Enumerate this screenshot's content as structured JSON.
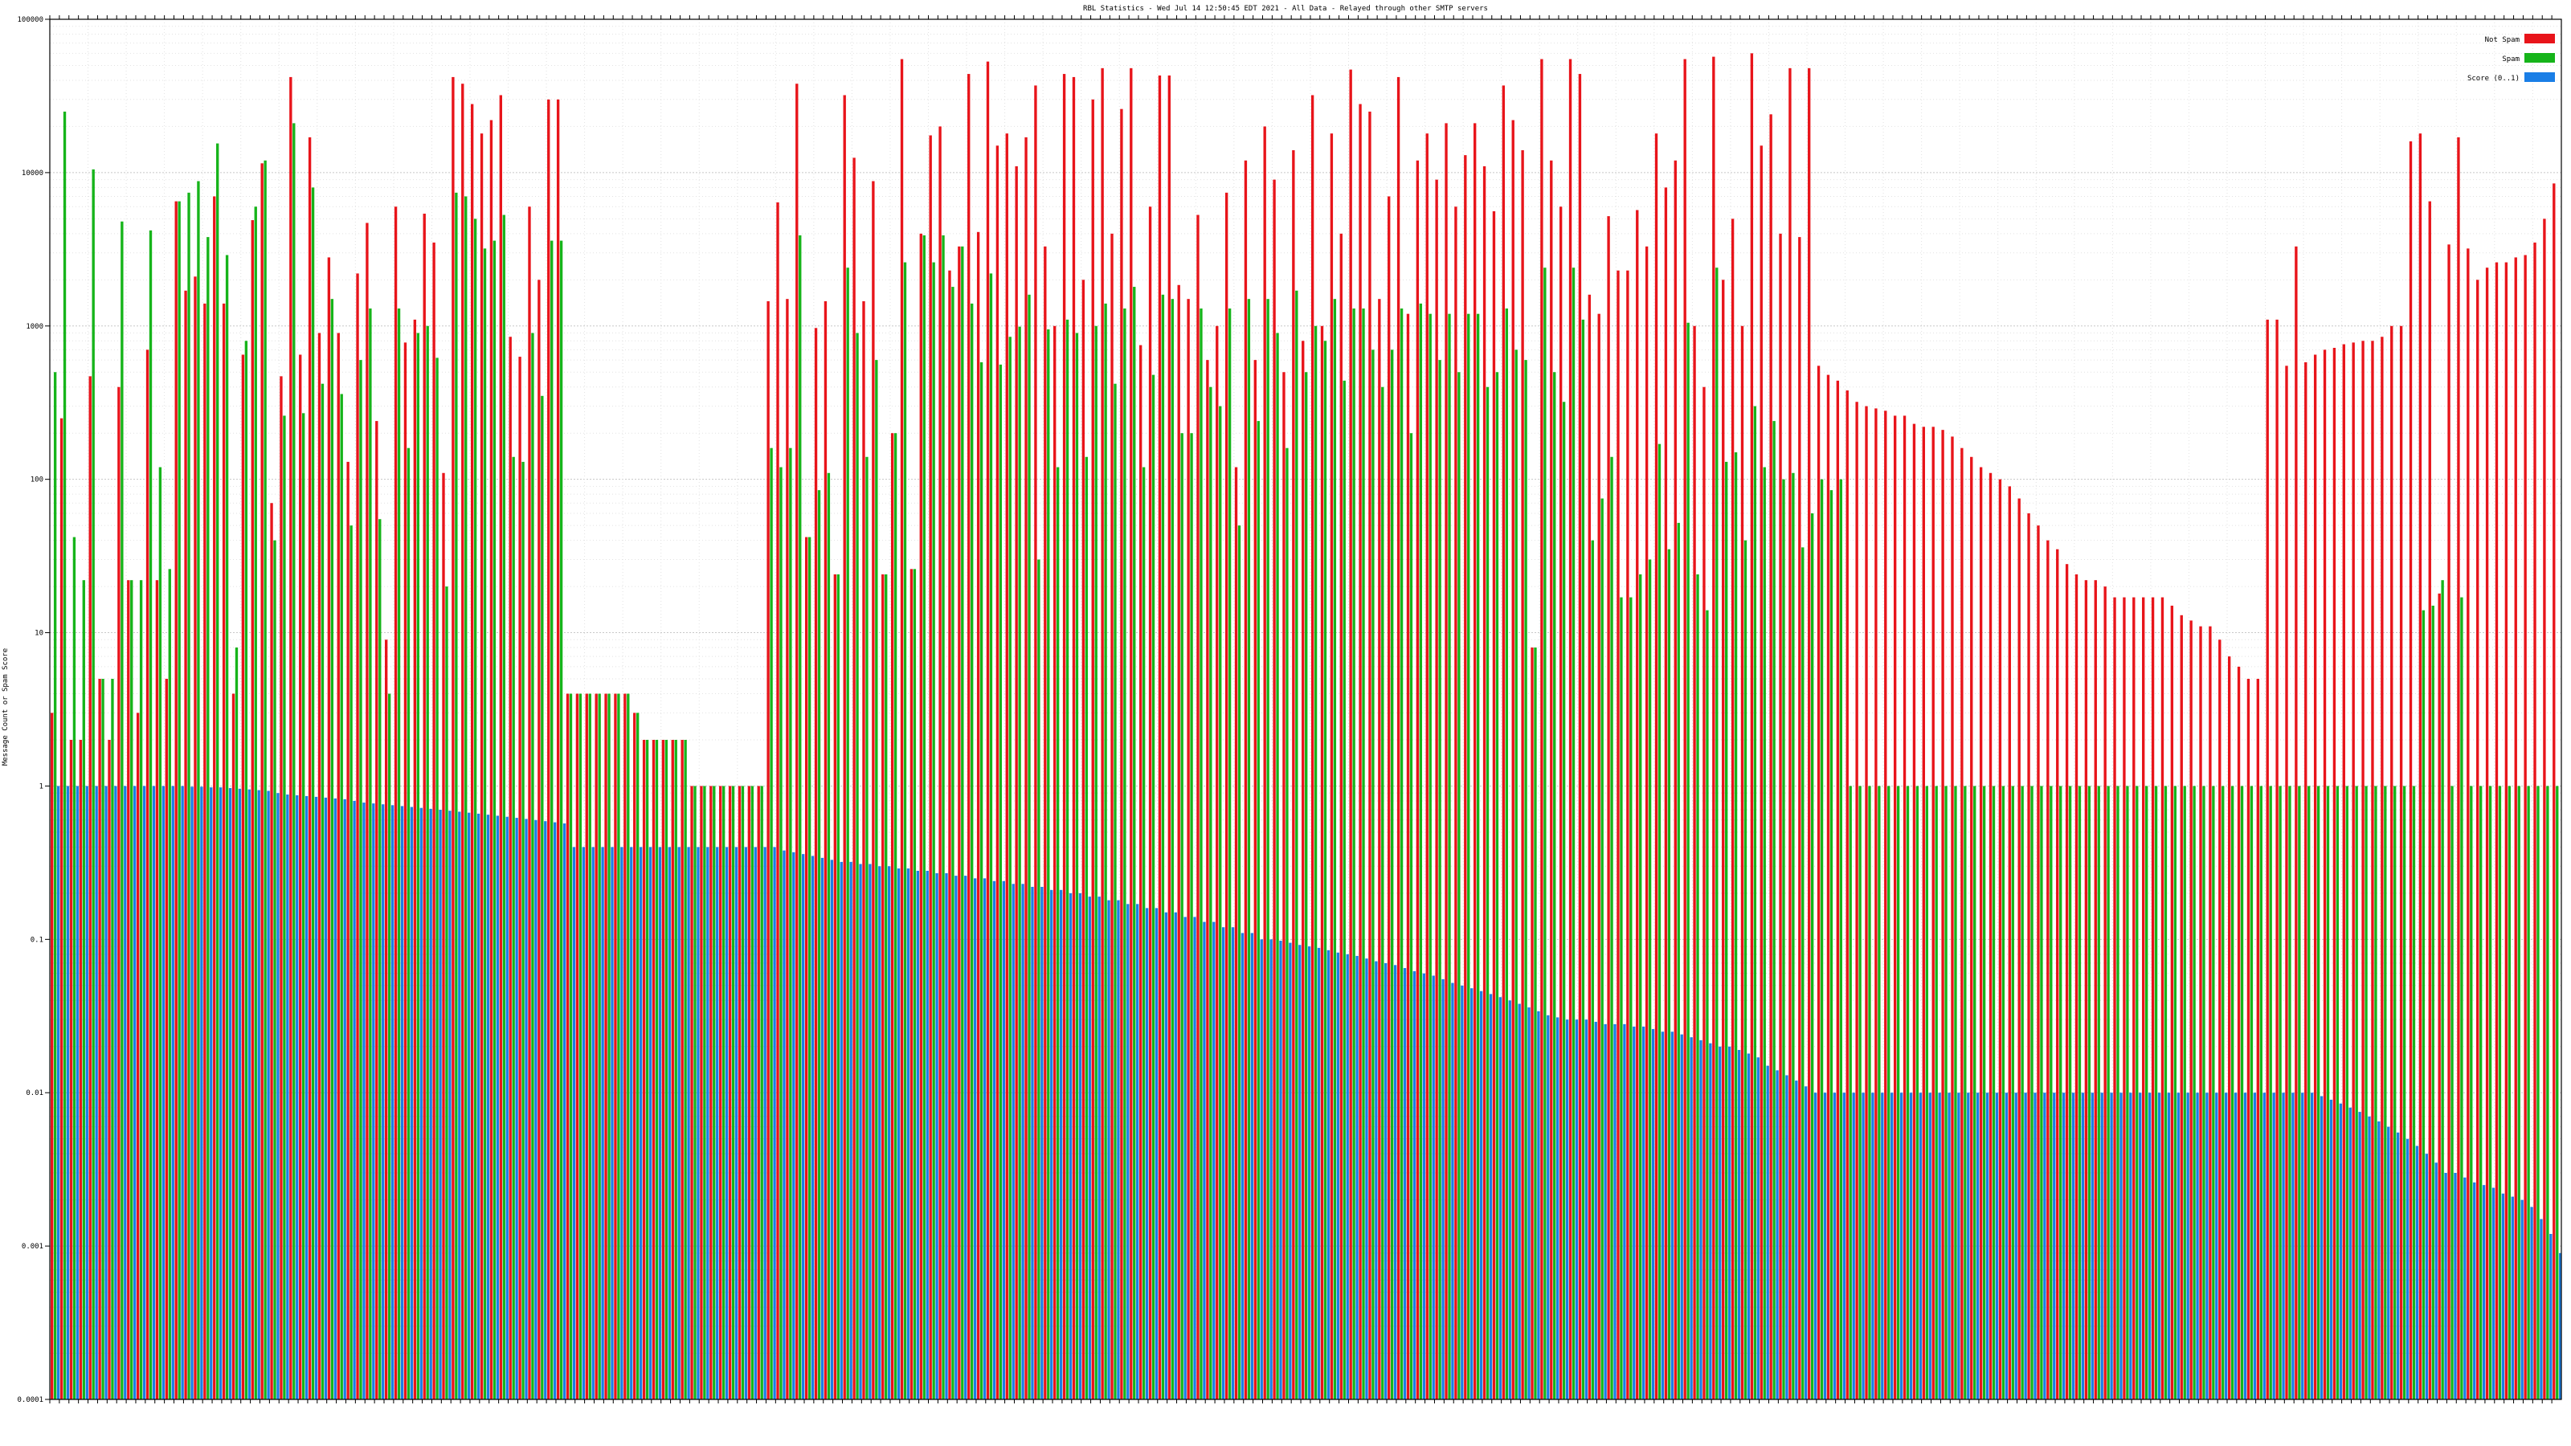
{
  "chart_data": {
    "type": "bar",
    "title": "RBL Statistics - Wed Jul 14 12:50:45 EDT 2021 - All Data - Relayed through other SMTP servers",
    "ylabel": "Message Count or Spam Score",
    "yscale": "log",
    "ylim": [
      0.0001,
      100000
    ],
    "y_ticks": [
      {
        "value": 0.0001,
        "label": "0.0001"
      },
      {
        "value": 0.001,
        "label": "0.001"
      },
      {
        "value": 0.01,
        "label": "0.01"
      },
      {
        "value": 0.1,
        "label": "0.1"
      },
      {
        "value": 1,
        "label": "1"
      },
      {
        "value": 10,
        "label": "10"
      },
      {
        "value": 100,
        "label": "100"
      },
      {
        "value": 1000,
        "label": "1000"
      },
      {
        "value": 10000,
        "label": "10000"
      },
      {
        "value": 100000,
        "label": "100000"
      }
    ],
    "grid": true,
    "legend_position": "top-right",
    "series": [
      {
        "name": "Not Spam",
        "color": "#e8141a",
        "key": "not_spam"
      },
      {
        "name": "Spam",
        "color": "#16b41a",
        "key": "spam"
      },
      {
        "name": "Score (0..1)",
        "color": "#1a7ee6",
        "key": "score"
      }
    ],
    "groups": [
      {
        "n": 7,
        "not_spam": [
          3,
          250,
          2,
          2,
          470,
          5,
          2
        ],
        "spam": [
          500,
          25000,
          42,
          22,
          10500,
          5,
          5
        ],
        "score": [
          1,
          1,
          1,
          1,
          1,
          1,
          1
        ]
      },
      {
        "n": 8,
        "not_spam": [
          400,
          22,
          3,
          700,
          22,
          5,
          6500,
          1700
        ],
        "spam": [
          4800,
          22,
          22,
          4200,
          120,
          26,
          6500,
          7400
        ],
        "score": [
          1,
          1,
          1,
          1,
          1,
          1,
          1,
          0.99
        ]
      },
      {
        "n": 8,
        "not_spam": [
          2100,
          1400,
          7000,
          1400,
          4,
          650,
          4900,
          11500
        ],
        "spam": [
          8800,
          3800,
          15500,
          2900,
          8,
          800,
          6000,
          12000
        ],
        "score": [
          0.99,
          0.98,
          0.98,
          0.97,
          0.96,
          0.95,
          0.94,
          0.93
        ]
      },
      {
        "n": 8,
        "not_spam": [
          70,
          470,
          42000,
          650,
          17000,
          900,
          2800,
          900
        ],
        "spam": [
          40,
          260,
          21000,
          270,
          8000,
          420,
          1500,
          360
        ],
        "score": [
          0.9,
          0.88,
          0.87,
          0.86,
          0.85,
          0.84,
          0.83,
          0.82
        ]
      },
      {
        "n": 8,
        "not_spam": [
          130,
          2200,
          4700,
          240,
          9,
          6000,
          780,
          1100
        ],
        "spam": [
          50,
          600,
          1300,
          55,
          4,
          1300,
          160,
          900
        ],
        "score": [
          0.8,
          0.78,
          0.77,
          0.76,
          0.75,
          0.74,
          0.73,
          0.72
        ]
      },
      {
        "n": 8,
        "not_spam": [
          5400,
          3500,
          110,
          42000,
          38000,
          28000,
          18000,
          22000
        ],
        "spam": [
          1000,
          620,
          20,
          7400,
          7000,
          5000,
          3200,
          3600
        ],
        "score": [
          0.71,
          0.7,
          0.69,
          0.68,
          0.67,
          0.66,
          0.65,
          0.64
        ]
      },
      {
        "n": 8,
        "not_spam": [
          32000,
          850,
          630,
          6000,
          2000,
          30000,
          30000,
          4
        ],
        "spam": [
          5300,
          140,
          130,
          900,
          350,
          3600,
          3600,
          4
        ],
        "score": [
          0.63,
          0.62,
          0.61,
          0.6,
          0.59,
          0.58,
          0.57,
          0.4
        ]
      },
      {
        "n": 8,
        "not_spam": [
          4,
          4,
          4,
          4,
          4,
          4,
          3,
          2
        ],
        "spam": [
          4,
          4,
          4,
          4,
          4,
          4,
          3,
          2
        ],
        "score": [
          0.4,
          0.4,
          0.4,
          0.4,
          0.4,
          0.4,
          0.4,
          0.4
        ]
      },
      {
        "n": 8,
        "not_spam": [
          2,
          2,
          2,
          2,
          1,
          1,
          1,
          1
        ],
        "spam": [
          2,
          2,
          2,
          2,
          1,
          1,
          1,
          1
        ],
        "score": [
          0.4,
          0.4,
          0.4,
          0.4,
          0.4,
          0.4,
          0.4,
          0.4
        ]
      },
      {
        "n": 8,
        "not_spam": [
          1,
          1,
          1,
          1,
          1450,
          6400,
          1500,
          38000
        ],
        "spam": [
          1,
          1,
          1,
          1,
          160,
          120,
          160,
          3900
        ],
        "score": [
          0.4,
          0.4,
          0.4,
          0.4,
          0.4,
          0.38,
          0.37,
          0.36
        ]
      },
      {
        "n": 8,
        "not_spam": [
          42,
          970,
          1450,
          24,
          32000,
          12500,
          1450,
          8800
        ],
        "spam": [
          42,
          85,
          110,
          24,
          2400,
          900,
          140,
          600
        ],
        "score": [
          0.35,
          0.34,
          0.33,
          0.32,
          0.32,
          0.31,
          0.31,
          0.3
        ]
      },
      {
        "n": 8,
        "not_spam": [
          24,
          200,
          55000,
          26,
          4000,
          17500,
          20000,
          2300
        ],
        "spam": [
          24,
          200,
          2600,
          26,
          3900,
          2600,
          3900,
          1800
        ],
        "score": [
          0.3,
          0.29,
          0.29,
          0.28,
          0.28,
          0.27,
          0.27,
          0.26
        ]
      },
      {
        "n": 8,
        "not_spam": [
          3300,
          44000,
          4100,
          53000,
          15000,
          18000,
          11000,
          17000
        ],
        "spam": [
          3300,
          1400,
          580,
          2200,
          560,
          850,
          990,
          1600
        ],
        "score": [
          0.26,
          0.25,
          0.25,
          0.24,
          0.24,
          0.23,
          0.23,
          0.22
        ]
      },
      {
        "n": 8,
        "not_spam": [
          37000,
          3300,
          1000,
          44000,
          42000,
          2000,
          30000,
          48000
        ],
        "spam": [
          30,
          950,
          120,
          1100,
          900,
          140,
          1000,
          1400
        ],
        "score": [
          0.22,
          0.21,
          0.21,
          0.2,
          0.2,
          0.19,
          0.19,
          0.18
        ]
      },
      {
        "n": 8,
        "not_spam": [
          4000,
          26000,
          48000,
          750,
          6000,
          43000,
          43000,
          1850
        ],
        "spam": [
          420,
          1300,
          1800,
          120,
          480,
          1600,
          1500,
          200
        ],
        "score": [
          0.18,
          0.17,
          0.17,
          0.16,
          0.16,
          0.15,
          0.15,
          0.14
        ]
      },
      {
        "n": 8,
        "not_spam": [
          1500,
          5300,
          600,
          1000,
          7400,
          120,
          12000,
          600
        ],
        "spam": [
          200,
          1300,
          400,
          300,
          1300,
          50,
          1500,
          240
        ],
        "score": [
          0.14,
          0.13,
          0.13,
          0.12,
          0.12,
          0.11,
          0.11,
          0.1
        ]
      },
      {
        "n": 8,
        "not_spam": [
          20000,
          9000,
          500,
          14000,
          800,
          32000,
          1000,
          18000
        ],
        "spam": [
          1500,
          900,
          160,
          1700,
          500,
          1000,
          800,
          1500
        ],
        "score": [
          0.1,
          0.098,
          0.095,
          0.092,
          0.09,
          0.088,
          0.085,
          0.082
        ]
      },
      {
        "n": 8,
        "not_spam": [
          4000,
          47000,
          28000,
          25000,
          1500,
          7000,
          42000,
          1200
        ],
        "spam": [
          440,
          1300,
          1300,
          700,
          400,
          700,
          1300,
          200
        ],
        "score": [
          0.08,
          0.078,
          0.075,
          0.072,
          0.07,
          0.068,
          0.065,
          0.062
        ]
      },
      {
        "n": 8,
        "not_spam": [
          12000,
          18000,
          9000,
          21000,
          6000,
          13000,
          21000,
          11000
        ],
        "spam": [
          1400,
          1200,
          600,
          1200,
          500,
          1200,
          1200,
          400
        ],
        "score": [
          0.06,
          0.058,
          0.055,
          0.052,
          0.05,
          0.048,
          0.046,
          0.044
        ]
      },
      {
        "n": 8,
        "not_spam": [
          5600,
          37000,
          22000,
          14000,
          8,
          55000,
          12000,
          6000
        ],
        "spam": [
          500,
          1300,
          700,
          600,
          8,
          2400,
          500,
          320
        ],
        "score": [
          0.042,
          0.04,
          0.038,
          0.036,
          0.034,
          0.032,
          0.031,
          0.03
        ]
      },
      {
        "n": 8,
        "not_spam": [
          55000,
          44000,
          1600,
          1200,
          5200,
          2300,
          2300,
          5700
        ],
        "spam": [
          2400,
          1100,
          40,
          75,
          140,
          17,
          17,
          24
        ],
        "score": [
          0.03,
          0.03,
          0.029,
          0.028,
          0.028,
          0.028,
          0.027,
          0.027
        ]
      },
      {
        "n": 8,
        "not_spam": [
          3300,
          18000,
          8000,
          12000,
          55000,
          1000,
          400,
          57000
        ],
        "spam": [
          30,
          170,
          35,
          52,
          1050,
          24,
          14,
          2400
        ],
        "score": [
          0.026,
          0.025,
          0.025,
          0.024,
          0.023,
          0.022,
          0.021,
          0.02
        ]
      },
      {
        "n": 8,
        "not_spam": [
          2000,
          5000,
          1000,
          60000,
          15000,
          24000,
          4000,
          48000
        ],
        "spam": [
          130,
          150,
          40,
          300,
          120,
          240,
          100,
          110
        ],
        "score": [
          0.02,
          0.019,
          0.018,
          0.017,
          0.015,
          0.014,
          0.013,
          0.012
        ]
      },
      {
        "n": 8,
        "not_spam": [
          3800,
          48000,
          550,
          480,
          440,
          380,
          320,
          300
        ],
        "spam": [
          36,
          60,
          100,
          85,
          100,
          1,
          1,
          1
        ],
        "score": [
          0.011,
          0.01,
          0.01,
          0.01,
          0.01,
          0.01,
          0.01,
          0.01
        ]
      },
      {
        "n": 8,
        "not_spam": [
          290,
          280,
          260,
          260,
          230,
          220,
          220,
          210
        ],
        "spam": [
          1,
          1,
          1,
          1,
          1,
          1,
          1,
          1
        ],
        "score": [
          0.01,
          0.01,
          0.01,
          0.01,
          0.01,
          0.01,
          0.01,
          0.01
        ]
      },
      {
        "n": 8,
        "not_spam": [
          190,
          160,
          140,
          120,
          110,
          100,
          90,
          75
        ],
        "spam": [
          1,
          1,
          1,
          1,
          1,
          1,
          1,
          1
        ],
        "score": [
          0.01,
          0.01,
          0.01,
          0.01,
          0.01,
          0.01,
          0.01,
          0.01
        ]
      },
      {
        "n": 8,
        "not_spam": [
          60,
          50,
          40,
          35,
          28,
          24,
          22,
          22
        ],
        "spam": [
          1,
          1,
          1,
          1,
          1,
          1,
          1,
          1
        ],
        "score": [
          0.01,
          0.01,
          0.01,
          0.01,
          0.01,
          0.01,
          0.01,
          0.01
        ]
      },
      {
        "n": 8,
        "not_spam": [
          20,
          17,
          17,
          17,
          17,
          17,
          17,
          15
        ],
        "spam": [
          1,
          1,
          1,
          1,
          1,
          1,
          1,
          1
        ],
        "score": [
          0.01,
          0.01,
          0.01,
          0.01,
          0.01,
          0.01,
          0.01,
          0.01
        ]
      },
      {
        "n": 8,
        "not_spam": [
          13,
          12,
          11,
          11,
          9,
          7,
          6,
          5
        ],
        "spam": [
          1,
          1,
          1,
          1,
          1,
          1,
          1,
          1
        ],
        "score": [
          0.01,
          0.01,
          0.01,
          0.01,
          0.01,
          0.01,
          0.01,
          0.01
        ]
      },
      {
        "n": 8,
        "not_spam": [
          5,
          1100,
          1100,
          550,
          3300,
          580,
          650,
          700
        ],
        "spam": [
          1,
          1,
          1,
          1,
          1,
          1,
          1,
          1
        ],
        "score": [
          0.01,
          0.01,
          0.01,
          0.01,
          0.01,
          0.01,
          0.0095,
          0.009
        ]
      },
      {
        "n": 8,
        "not_spam": [
          720,
          760,
          780,
          800,
          800,
          850,
          1000,
          1000
        ],
        "spam": [
          1,
          1,
          1,
          1,
          1,
          1,
          1,
          1
        ],
        "score": [
          0.0085,
          0.008,
          0.0075,
          0.007,
          0.0065,
          0.006,
          0.0055,
          0.005
        ]
      },
      {
        "n": 8,
        "not_spam": [
          16000,
          18000,
          6500,
          18,
          3400,
          17000,
          3200,
          2000
        ],
        "spam": [
          1,
          14,
          15,
          22,
          1,
          17,
          1,
          1
        ],
        "score": [
          0.0045,
          0.004,
          0.0035,
          0.003,
          0.003,
          0.0028,
          0.0026,
          0.0025
        ]
      },
      {
        "n": 8,
        "not_spam": [
          2400,
          2600,
          2600,
          2800,
          2900,
          3500,
          5000,
          8500
        ],
        "spam": [
          1,
          1,
          1,
          1,
          1,
          1,
          1,
          1
        ],
        "score": [
          0.0024,
          0.0022,
          0.0021,
          0.002,
          0.0018,
          0.0015,
          0.0012,
          0.0009
        ]
      }
    ]
  }
}
